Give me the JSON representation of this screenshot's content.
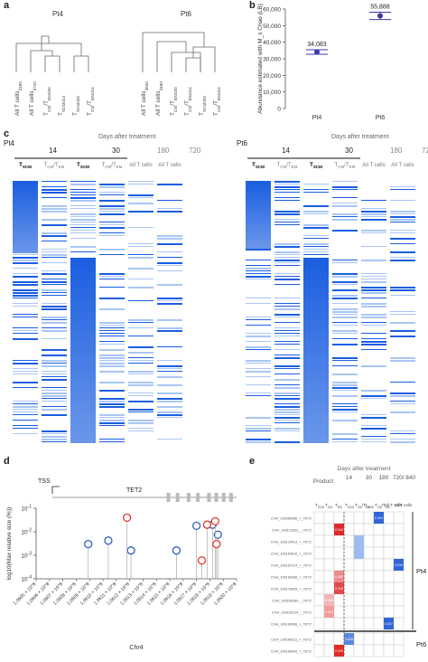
{
  "panel_a": {
    "label": "a",
    "trees": [
      {
        "title": "Pt4",
        "leaves": [
          "All T cells_d180",
          "All T cells_d720",
          "T_CM/T_EM_d30",
          "T_SCM_d14",
          "T_SCM_d30",
          "T_CM/T_EM_d14"
        ]
      },
      {
        "title": "Pt6",
        "leaves": [
          "All T cells_d840",
          "All T cells_d180",
          "T_CM/T_EM_d30",
          "T_CM/T_EM_d14",
          "T_SCM_d30",
          "T_CM/T_EM_d14"
        ]
      }
    ]
  },
  "panel_b": {
    "label": "b",
    "chart_data": {
      "type": "scatter",
      "categories": [
        "Pt4",
        "Pt6"
      ],
      "values": [
        34083,
        55888
      ],
      "value_labels": [
        "34,083",
        "55,888"
      ],
      "ylabel": "Abundance estimated with M_s Chao (LB)",
      "ylim": [
        0,
        60000
      ],
      "yticks": [
        "0",
        "10,000",
        "20,000",
        "30,000",
        "40,000",
        "50,000",
        "60,000"
      ],
      "marker_color": "#3a37a8"
    }
  },
  "panel_c": {
    "label": "c",
    "days_title": "Days after treatment",
    "blocks": [
      {
        "patient": "Pt4",
        "days": [
          "14",
          "30",
          "180",
          "720"
        ],
        "columns": [
          "T_SCM",
          "T_CM/T_EM",
          "T_SCM",
          "T_CM/T_EM",
          "All T cells",
          "All T cells"
        ]
      },
      {
        "patient": "Pt6",
        "days": [
          "14",
          "30",
          "180",
          "720"
        ],
        "columns": [
          "T_SCM",
          "T_CM/T_EM",
          "T_SCM",
          "T_CM/T_EM",
          "All T cells",
          "All T cells"
        ]
      }
    ],
    "color_dark": "#1a5ee0",
    "color_light": "#a9c6f5"
  },
  "panel_d": {
    "label": "d",
    "tss_label": "TSS",
    "gene_label": "TET2",
    "chart_data": {
      "type": "scatter",
      "xlabel": "Chr4",
      "ylabel": "log10(Max relative size (%))",
      "yticks": [
        "10^-1",
        "10^-2",
        "10^-3",
        "10^-4"
      ],
      "xticks": [
        "1.0605 × 10^8",
        "1.0606 × 10^8",
        "1.0607 × 10^8",
        "1.0608 × 10^8",
        "1.0609 × 10^8",
        "1.0610 × 10^8",
        "1.0611 × 10^8",
        "1.0612 × 10^8",
        "1.0613 × 10^8",
        "1.0614 × 10^8",
        "1.0615 × 10^8",
        "1.0616 × 10^8",
        "1.0617 × 10^8",
        "1.0618 × 10^8",
        "1.0619 × 10^8",
        "1.0620 × 10^8"
      ],
      "series": [
        {
          "color": "#2f5fbf",
          "points": [
            [
              106089000,
              0.003
            ],
            [
              106104000,
              0.0042
            ],
            [
              106121000,
              0.0016
            ],
            [
              106155000,
              0.0016
            ],
            [
              106170000,
              0.018
            ],
            [
              106182000,
              0.02
            ],
            [
              106186000,
              0.0075
            ]
          ]
        },
        {
          "color": "#e0392b",
          "points": [
            [
              106118000,
              0.04
            ],
            [
              106174000,
              0.0006
            ],
            [
              106178000,
              0.02
            ],
            [
              106184000,
              0.028
            ],
            [
              106185000,
              0.003
            ]
          ]
        }
      ]
    }
  },
  "panel_e": {
    "label": "e",
    "days_title": "Days after treatment",
    "product_label": "Product",
    "day_labels": [
      "14",
      "30",
      "180",
      "720/ 840"
    ],
    "columns": [
      "T_SCM",
      "T_CM",
      "T_EM",
      "T_SCM",
      "T_CM/T_EM",
      "T_SCM",
      "T_CM/T_EM",
      "All T cells",
      "All T cells"
    ],
    "rows": [
      {
        "label": "Chr4_106089056_+_TET2",
        "group": "Pt4"
      },
      {
        "label": "Chr4_106123322_-_TET2",
        "group": "Pt4"
      },
      {
        "label": "Chr4_106124913_+_TET2",
        "group": "Pt4"
      },
      {
        "label": "Chr4_106154910_+_TET2",
        "group": "Pt4"
      },
      {
        "label": "Chr4_106167314_+_TET2",
        "group": "Pt4"
      },
      {
        "label": "Chr4_106169266_+_TET2",
        "group": "Pt4"
      },
      {
        "label": "Chr4_106176035_+_TET2",
        "group": "Pt4"
      },
      {
        "label": "Chr4_106180260_-_TET2",
        "group": "Pt4"
      },
      {
        "label": "Chr4_106182214_-_TET2",
        "group": "Pt4"
      },
      {
        "label": "Chr4_106180906_+_TET2",
        "group": "Pt4"
      },
      {
        "label": "Chr4_106180211_+_TET2",
        "group": "Pt6"
      },
      {
        "label": "Chr4_106180926_+_TET2",
        "group": "Pt6"
      }
    ],
    "cells": [
      {
        "row": 0,
        "col": 6,
        "value": "0.003",
        "color": "#2f65d6"
      },
      {
        "row": 1,
        "col": 2,
        "value": "0.044",
        "color": "#e02a2a"
      },
      {
        "row": 2,
        "col": 4,
        "value": "",
        "color": "#9fbcf0"
      },
      {
        "row": 3,
        "col": 4,
        "value": "",
        "color": "#9fbcf0"
      },
      {
        "row": 4,
        "col": 8,
        "value": "0.019",
        "color": "#2f65d6"
      },
      {
        "row": 5,
        "col": 2,
        "value": "0.062",
        "color": "#ee8a8a"
      },
      {
        "row": 6,
        "col": 2,
        "value": "0.018",
        "color": "#e04a4a"
      },
      {
        "row": 7,
        "col": 1,
        "value": "0.008",
        "color": "#f2b6b6"
      },
      {
        "row": 8,
        "col": 1,
        "value": "0.023",
        "color": "#f49a9a"
      },
      {
        "row": 9,
        "col": 7,
        "value": "0.007",
        "color": "#2f65d6"
      },
      {
        "row": 10,
        "col": 3,
        "value": "0.008",
        "color": "#5b87e0"
      },
      {
        "row": 11,
        "col": 2,
        "value": "0.025",
        "color": "#e02a2a"
      }
    ],
    "groups": [
      "Pt4",
      "Pt6"
    ]
  }
}
